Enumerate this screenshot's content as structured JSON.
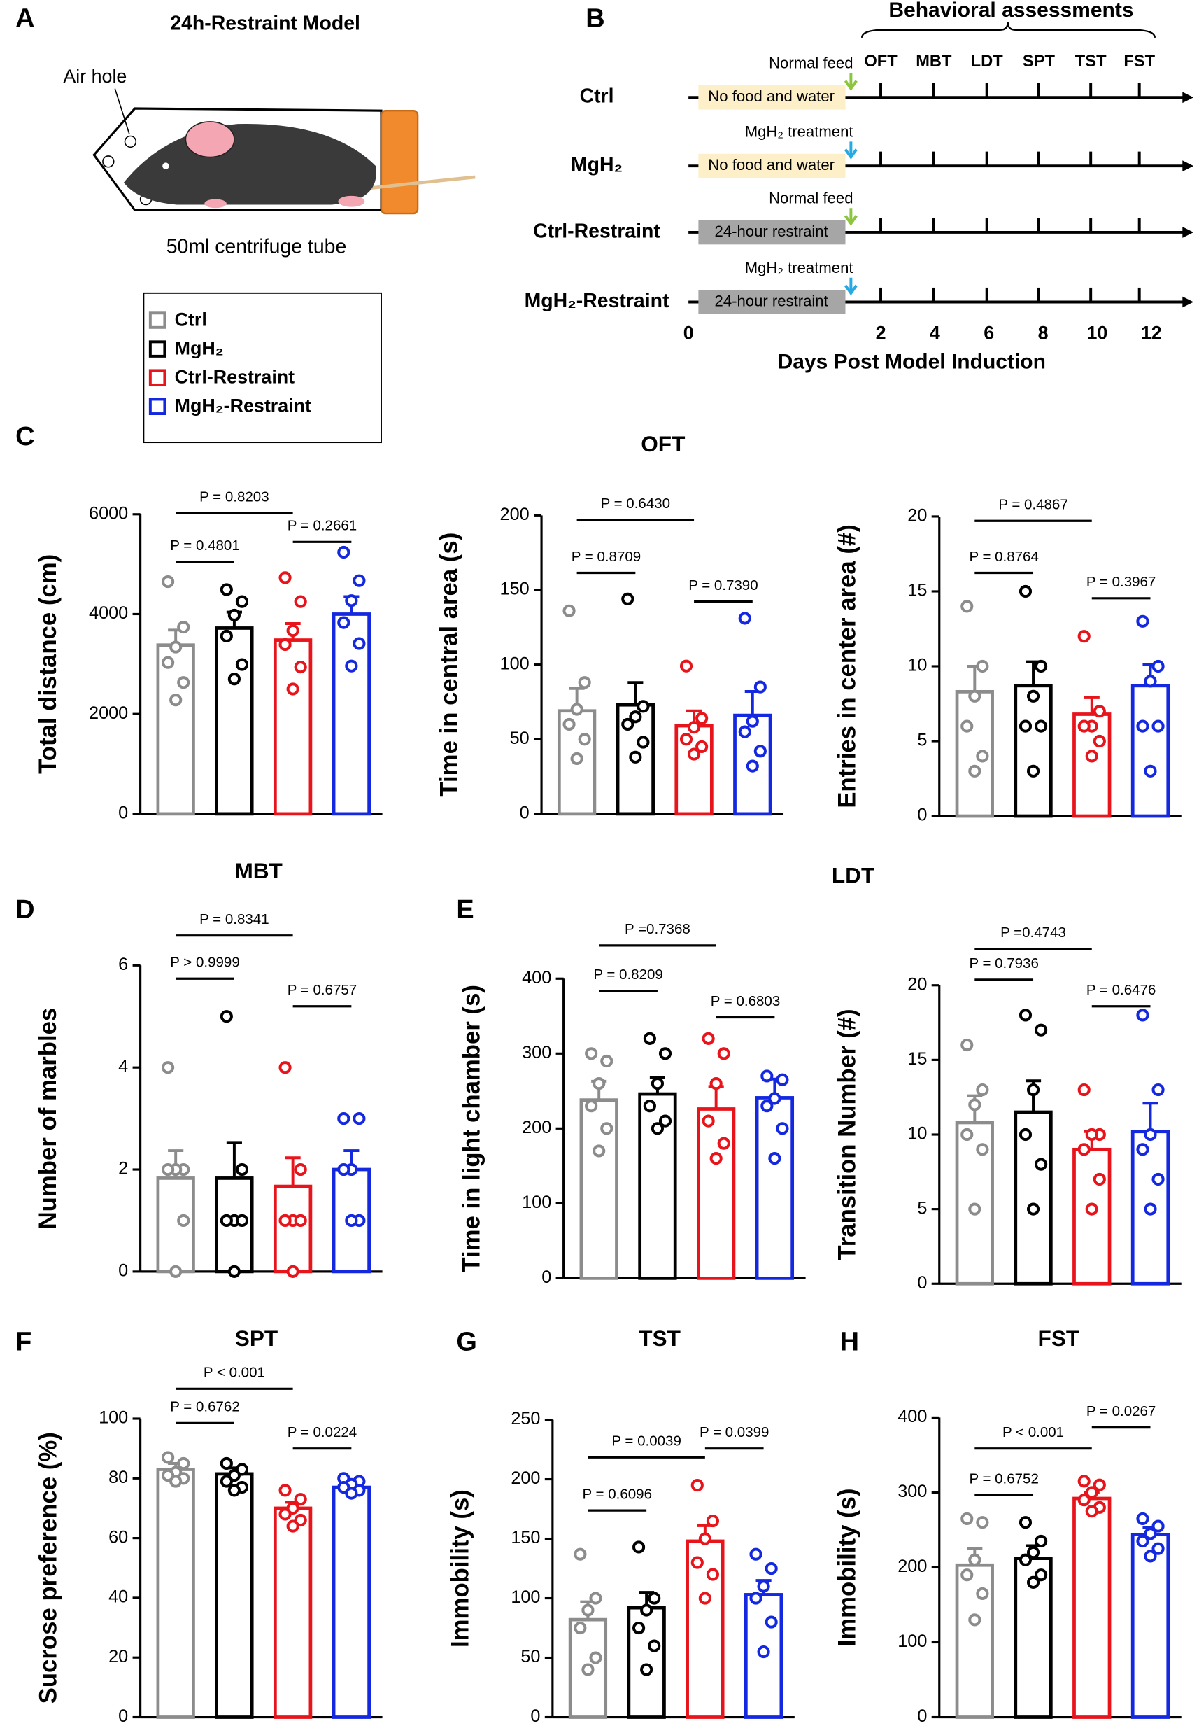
{
  "panels": [
    "A",
    "B",
    "C",
    "D",
    "E",
    "F",
    "G",
    "H"
  ],
  "model": {
    "title": "24h-Restraint  Model",
    "air_hole": "Air hole",
    "tube": "50ml centrifuge tube"
  },
  "legend": [
    {
      "name": "Ctrl",
      "color": "#8c8c8c"
    },
    {
      "name": "MgH₂",
      "color": "#000000"
    },
    {
      "name": "Ctrl-Restraint",
      "color": "#e8141b"
    },
    {
      "name": "MgH₂-Restraint",
      "color": "#1428e0"
    }
  ],
  "timeline": {
    "title": "Behavioral assessments",
    "tests": [
      "OFT",
      "MBT",
      "LDT",
      "SPT",
      "TST",
      "FST"
    ],
    "rows": [
      {
        "label": "Ctrl",
        "box": "No food and water",
        "note": "Normal feed",
        "box_color": "#fdefc7",
        "arrow_color": "#8cc63f"
      },
      {
        "label": "MgH₂",
        "box": "No food and water",
        "note": "MgH₂ treatment",
        "box_color": "#fdefc7",
        "arrow_color": "#27a9e1"
      },
      {
        "label": "Ctrl-Restraint",
        "box": "24-hour restraint",
        "note": "Normal feed",
        "box_color": "#a6a6a6",
        "arrow_color": "#8cc63f"
      },
      {
        "label": "MgH₂-Restraint",
        "box": "24-hour restraint",
        "note": "MgH₂ treatment",
        "box_color": "#a6a6a6",
        "arrow_color": "#27a9e1"
      }
    ],
    "xticks": [
      0,
      2,
      4,
      6,
      8,
      10,
      12
    ],
    "xlabel": "Days Post Model Induction"
  },
  "chart_data": [
    {
      "type": "bar",
      "title": "OFT",
      "ylabel": "Total distance (cm)",
      "ylim": [
        0,
        6000
      ],
      "yticks": [
        0,
        2000,
        4000,
        6000
      ],
      "values": [
        3380,
        3720,
        3480,
        4000
      ],
      "errors": [
        300,
        320,
        330,
        350
      ],
      "points": [
        [
          4650,
          3740,
          3340,
          3030,
          2630,
          2280
        ],
        [
          4490,
          4250,
          3980,
          3560,
          2990,
          2700
        ],
        [
          4730,
          4250,
          3670,
          3390,
          2940,
          2500
        ],
        [
          5240,
          4670,
          4270,
          3830,
          3410,
          2960
        ]
      ],
      "annotations": [
        "P = 0.8203",
        "P = 0.4801",
        "P = 0.2661"
      ]
    },
    {
      "type": "bar",
      "ylabel": "Time in central area (s)",
      "ylim": [
        0,
        200
      ],
      "yticks": [
        0,
        50,
        100,
        150,
        200
      ],
      "values": [
        69,
        73,
        59,
        66
      ],
      "errors": [
        15,
        15,
        10,
        16
      ],
      "points": [
        [
          136,
          88,
          70,
          60,
          50,
          37
        ],
        [
          144,
          72,
          65,
          60,
          48,
          38
        ],
        [
          99,
          64,
          58,
          50,
          45,
          40
        ],
        [
          131,
          85,
          62,
          55,
          42,
          32
        ]
      ],
      "annotations": [
        "P = 0.6430",
        "P = 0.8709",
        "P = 0.7390"
      ]
    },
    {
      "type": "bar",
      "ylabel": "Entries in center area (#)",
      "ylim": [
        0,
        20
      ],
      "yticks": [
        0,
        5,
        10,
        15,
        20
      ],
      "values": [
        8.3,
        8.7,
        6.8,
        8.7
      ],
      "errors": [
        1.7,
        1.6,
        1.1,
        1.4
      ],
      "points": [
        [
          14,
          10,
          8,
          6,
          4,
          3
        ],
        [
          15,
          10,
          8,
          6,
          6,
          3
        ],
        [
          12,
          7,
          6,
          6,
          5,
          4
        ],
        [
          13,
          10,
          9,
          6,
          6,
          3
        ]
      ],
      "annotations": [
        "P = 0.4867",
        "P = 0.8764",
        "P = 0.3967"
      ]
    },
    {
      "type": "bar",
      "title": "MBT",
      "ylabel": "Number of marbles",
      "ylim": [
        0,
        6
      ],
      "yticks": [
        0,
        2,
        4,
        6
      ],
      "values": [
        1.83,
        1.83,
        1.67,
        2.0
      ],
      "errors": [
        0.54,
        0.7,
        0.56,
        0.37
      ],
      "points": [
        [
          4,
          2,
          2,
          2,
          1,
          0
        ],
        [
          5,
          2,
          1,
          1,
          1,
          0
        ],
        [
          4,
          2,
          1,
          1,
          1,
          0
        ],
        [
          3,
          3,
          2,
          2,
          1,
          1
        ]
      ],
      "annotations": [
        "P = 0.8341",
        "P > 0.9999",
        "P = 0.6757"
      ]
    },
    {
      "type": "bar",
      "title": "LDT",
      "ylabel": "Time in light chamber (s)",
      "ylim": [
        0,
        400
      ],
      "yticks": [
        0,
        100,
        200,
        300,
        400
      ],
      "values": [
        238,
        246,
        226,
        241
      ],
      "errors": [
        25,
        22,
        30,
        25
      ],
      "points": [
        [
          300,
          290,
          260,
          230,
          200,
          170
        ],
        [
          320,
          300,
          260,
          230,
          210,
          200
        ],
        [
          320,
          300,
          260,
          210,
          180,
          160
        ],
        [
          270,
          265,
          240,
          230,
          200,
          160
        ]
      ],
      "annotations": [
        "P =0.7368",
        "P = 0.8209",
        "P = 0.6803"
      ]
    },
    {
      "type": "bar",
      "ylabel": "Transition Number (#)",
      "ylim": [
        0,
        20
      ],
      "yticks": [
        0,
        5,
        10,
        15,
        20
      ],
      "values": [
        10.8,
        11.5,
        9,
        10.2
      ],
      "errors": [
        1.8,
        2.1,
        1.2,
        1.9
      ],
      "points": [
        [
          16,
          13,
          12,
          10,
          9,
          5
        ],
        [
          18,
          17,
          13,
          10,
          8,
          5
        ],
        [
          13,
          10,
          10,
          9,
          7,
          5
        ],
        [
          18,
          13,
          10,
          9,
          7,
          5
        ]
      ],
      "annotations": [
        "P =0.4743",
        "P = 0.7936",
        "P = 0.6476"
      ]
    },
    {
      "type": "bar",
      "title": "SPT",
      "ylabel": "Sucrose preference (%)",
      "ylim": [
        0,
        100
      ],
      "yticks": [
        0,
        20,
        40,
        60,
        80,
        100
      ],
      "values": [
        83,
        81.5,
        70,
        77
      ],
      "errors": [
        2,
        2,
        2,
        1
      ],
      "points": [
        [
          87,
          85,
          82,
          81,
          80,
          79
        ],
        [
          85,
          83,
          81,
          79,
          77,
          76
        ],
        [
          76,
          73,
          70,
          68,
          66,
          64
        ],
        [
          80,
          79,
          78,
          77,
          76,
          75
        ]
      ],
      "annotations": [
        "P < 0.001",
        "P = 0.6762",
        "P = 0.0224"
      ]
    },
    {
      "type": "bar",
      "title": "TST",
      "ylabel": "Immobility (s)",
      "ylim": [
        0,
        250
      ],
      "yticks": [
        0,
        50,
        100,
        150,
        200,
        250
      ],
      "values": [
        82,
        92,
        148,
        103
      ],
      "errors": [
        15,
        13,
        13,
        12
      ],
      "points": [
        [
          137,
          100,
          90,
          75,
          50,
          40
        ],
        [
          143,
          100,
          90,
          75,
          60,
          40
        ],
        [
          195,
          165,
          150,
          130,
          120,
          100
        ],
        [
          137,
          125,
          110,
          100,
          80,
          55
        ]
      ],
      "annotations": [
        "P = 0.0039",
        "P = 0.6096",
        "P = 0.0399"
      ]
    },
    {
      "type": "bar",
      "title": "FST",
      "ylabel": "Immobility (s)",
      "ylim": [
        0,
        400
      ],
      "yticks": [
        0,
        100,
        200,
        300,
        400
      ],
      "values": [
        203,
        212,
        292,
        244
      ],
      "errors": [
        22,
        17,
        8,
        9
      ],
      "points": [
        [
          265,
          260,
          210,
          190,
          165,
          130
        ],
        [
          260,
          235,
          220,
          210,
          190,
          180
        ],
        [
          315,
          310,
          300,
          290,
          280,
          275
        ],
        [
          265,
          255,
          245,
          235,
          225,
          215
        ]
      ],
      "annotations": [
        "P < 0.001",
        "P = 0.6752",
        "P = 0.0267"
      ]
    }
  ]
}
